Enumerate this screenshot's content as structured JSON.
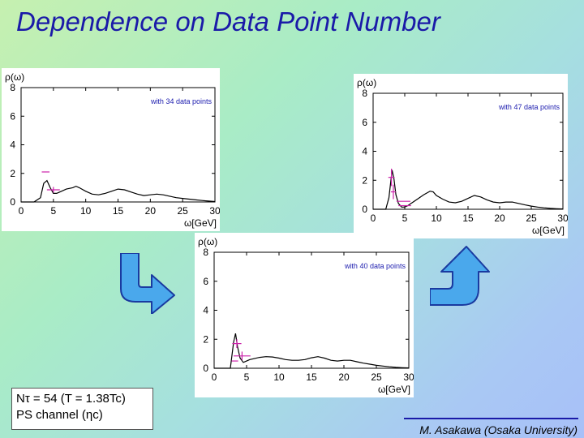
{
  "slide": {
    "title": "Dependence on Data Point Number",
    "info": {
      "line1": "Nτ = 54 (T = 1.38Tc)",
      "line2": "PS channel (ηc)"
    },
    "footer": "M. Asakawa (Osaka University)"
  },
  "chart_data": [
    {
      "type": "line",
      "ylabel": "ρ(ω)",
      "xlabel": "ω[GeV]",
      "xlim": [
        0,
        30
      ],
      "ylim": [
        0,
        8
      ],
      "xticks": [
        "0",
        "5",
        "10",
        "15",
        "20",
        "25",
        "30"
      ],
      "yticks": [
        "0",
        "2",
        "4",
        "6",
        "8"
      ],
      "annotation": "with 34 data points",
      "series": [
        {
          "x": [
            0,
            2.0,
            3.0,
            3.5,
            4.0,
            4.5,
            5.0,
            5.5,
            6.0,
            7.0,
            8.0,
            8.5,
            9.0,
            10.0,
            11.0,
            12.0,
            13.0,
            14.0,
            15.0,
            16.0,
            17.0,
            18.0,
            19.0,
            20.0,
            21.0,
            22.0,
            23.0,
            24.0,
            25.0,
            26.0,
            27.0,
            28.0,
            29.0,
            30.0
          ],
          "y": [
            0,
            0.0,
            0.3,
            1.3,
            1.5,
            1.0,
            0.6,
            0.6,
            0.7,
            0.9,
            1.0,
            1.1,
            1.0,
            0.75,
            0.55,
            0.5,
            0.6,
            0.75,
            0.9,
            0.85,
            0.7,
            0.55,
            0.45,
            0.5,
            0.55,
            0.5,
            0.4,
            0.3,
            0.25,
            0.2,
            0.15,
            0.1,
            0.06,
            0.03
          ]
        }
      ],
      "error_bars": [
        {
          "x": 3.8,
          "y": 2.1,
          "dx": 0.6,
          "dy": 0
        },
        {
          "x": 5.0,
          "y": 0.85,
          "dx": 1.0,
          "dy": 0.2
        }
      ]
    },
    {
      "type": "line",
      "ylabel": "ρ(ω)",
      "xlabel": "ω[GeV]",
      "xlim": [
        0,
        30
      ],
      "ylim": [
        0,
        8
      ],
      "xticks": [
        "0",
        "5",
        "10",
        "15",
        "20",
        "25",
        "30"
      ],
      "yticks": [
        "0",
        "2",
        "4",
        "6",
        "8"
      ],
      "annotation": "with 47 data points",
      "series": [
        {
          "x": [
            0,
            2.0,
            2.5,
            3.0,
            3.3,
            3.6,
            4.0,
            4.5,
            5.0,
            5.5,
            6.0,
            7.0,
            8.0,
            9.0,
            9.5,
            10.0,
            11.0,
            12.0,
            13.0,
            14.0,
            15.0,
            16.0,
            17.0,
            18.0,
            19.0,
            20.0,
            21.0,
            22.0,
            23.0,
            24.0,
            25.0,
            26.0,
            27.0,
            28.0,
            29.0,
            30.0
          ],
          "y": [
            0,
            0.0,
            0.8,
            2.7,
            2.1,
            1.0,
            0.4,
            0.15,
            0.15,
            0.25,
            0.4,
            0.7,
            1.0,
            1.25,
            1.2,
            0.95,
            0.7,
            0.5,
            0.45,
            0.55,
            0.75,
            0.95,
            0.85,
            0.65,
            0.5,
            0.45,
            0.5,
            0.5,
            0.4,
            0.3,
            0.22,
            0.15,
            0.1,
            0.06,
            0.04,
            0.02
          ]
        }
      ],
      "error_bars": [
        {
          "x": 2.9,
          "y": 2.2,
          "dx": 0.5,
          "dy": 0.6
        },
        {
          "x": 3.2,
          "y": 1.2,
          "dx": 0.4,
          "dy": 0.5
        },
        {
          "x": 4.8,
          "y": 0.55,
          "dx": 1.1,
          "dy": 0
        },
        {
          "x": 5.0,
          "y": 0.25,
          "dx": 1.0,
          "dy": 0
        }
      ]
    },
    {
      "type": "line",
      "ylabel": "ρ(ω)",
      "xlabel": "ω[GeV]",
      "xlim": [
        0,
        30
      ],
      "ylim": [
        0,
        8
      ],
      "xticks": [
        "0",
        "5",
        "10",
        "15",
        "20",
        "25",
        "30"
      ],
      "yticks": [
        "0",
        "2",
        "4",
        "6",
        "8"
      ],
      "annotation": "with 40 data points",
      "series": [
        {
          "x": [
            0,
            2.5,
            3.0,
            3.3,
            3.6,
            4.0,
            4.5,
            5.0,
            5.5,
            6.0,
            7.0,
            8.0,
            9.0,
            10.0,
            11.0,
            12.0,
            13.0,
            14.0,
            15.0,
            16.0,
            17.0,
            18.0,
            19.0,
            20.0,
            21.0,
            22.0,
            23.0,
            24.0,
            25.0,
            26.0,
            27.0,
            28.0,
            29.0,
            30.0
          ],
          "y": [
            0,
            0.0,
            1.8,
            2.4,
            1.5,
            0.7,
            0.4,
            0.5,
            0.6,
            0.65,
            0.75,
            0.8,
            0.78,
            0.7,
            0.6,
            0.55,
            0.55,
            0.6,
            0.72,
            0.8,
            0.7,
            0.55,
            0.5,
            0.55,
            0.55,
            0.45,
            0.35,
            0.28,
            0.2,
            0.15,
            0.1,
            0.06,
            0.04,
            0.02
          ]
        }
      ],
      "error_bars": [
        {
          "x": 3.5,
          "y": 1.7,
          "dx": 0.7,
          "dy": 0.3
        },
        {
          "x": 4.3,
          "y": 0.85,
          "dx": 1.3,
          "dy": 0.3
        },
        {
          "x": 3.2,
          "y": 0.5,
          "dx": 0.5,
          "dy": 0
        }
      ]
    }
  ],
  "colors": {
    "title": "#1a1aa8",
    "annotation": "#2020b0",
    "curve": "#000000",
    "error_bars": "#cc22aa",
    "arrow_fill": "#4aa8ec",
    "arrow_stroke": "#1a3aa0"
  },
  "icons": [
    "arrow-down-right-icon",
    "arrow-up-icon"
  ]
}
